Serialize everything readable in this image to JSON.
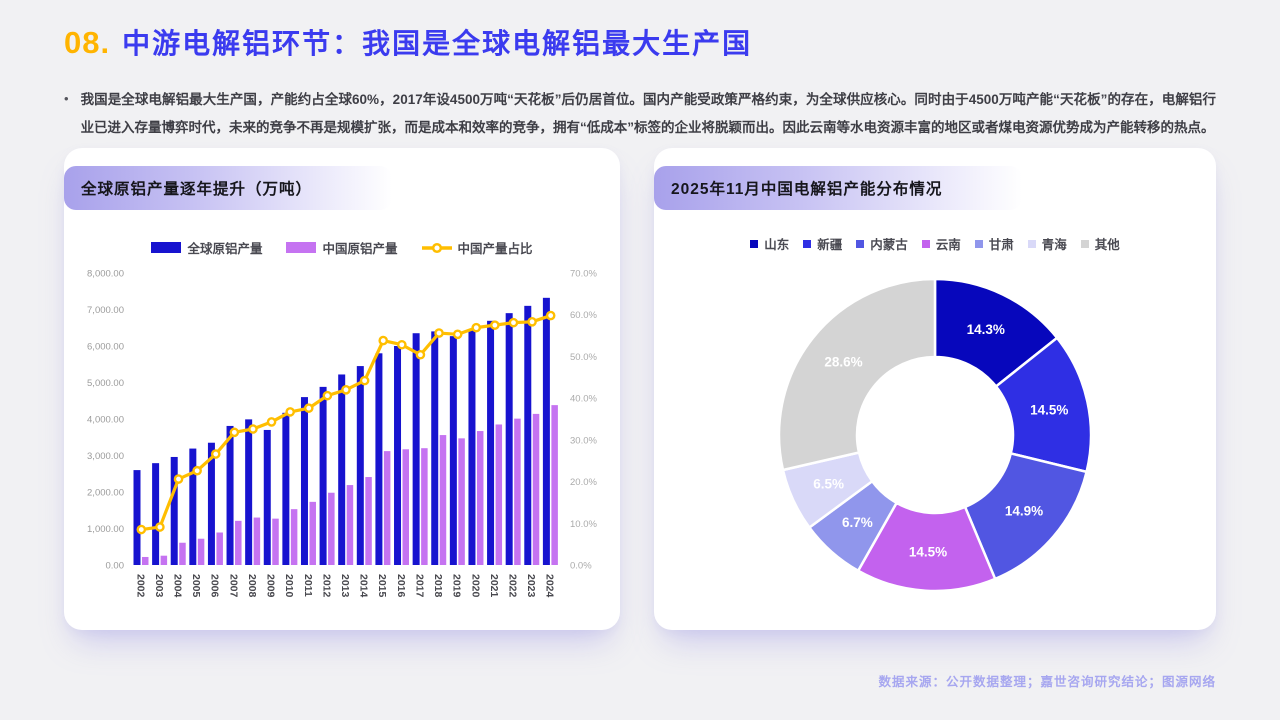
{
  "header": {
    "number": "08.",
    "title": "中游电解铝环节：我国是全球电解铝最大生产国"
  },
  "intro": {
    "bullet": "•",
    "text": "我国是全球电解铝最大生产国，产能约占全球60%，2017年设4500万吨“天花板”后仍居首位。国内产能受政策严格约束，为全球供应核心。同时由于4500万吨产能“天花板”的存在，电解铝行业已进入存量博弈时代，未来的竞争不再是规模扩张，而是成本和效率的竞争，拥有“低成本”标签的企业将脱颖而出。因此云南等水电资源丰富的地区或者煤电资源优势成为产能转移的热点。"
  },
  "footer": {
    "source": "数据来源：公开数据整理；嘉世咨询研究结论；图源网络"
  },
  "theme": {
    "page_bg": "#F1F1F3",
    "header_number_color": "#FFB400",
    "header_title_color": "#3B3BEF",
    "badge_gradient_start": "#A8A1EB",
    "footer_color": "#A7A7F0"
  },
  "chart_data": [
    {
      "type": "bar",
      "title": "全球原铝产量逐年提升（万吨）",
      "categories": [
        "2002",
        "2003",
        "2004",
        "2005",
        "2006",
        "2007",
        "2008",
        "2009",
        "2010",
        "2011",
        "2012",
        "2013",
        "2014",
        "2015",
        "2016",
        "2017",
        "2018",
        "2019",
        "2020",
        "2021",
        "2022",
        "2023",
        "2024"
      ],
      "series": [
        {
          "name": "全球原铝产量",
          "type": "bar",
          "color": "#1713CF",
          "values": [
            2600,
            2790,
            2960,
            3190,
            3350,
            3810,
            3990,
            3700,
            4170,
            4600,
            4880,
            5220,
            5450,
            5800,
            6000,
            6350,
            6400,
            6270,
            6450,
            6690,
            6900,
            7100,
            7320
          ]
        },
        {
          "name": "中国原铝产量",
          "type": "bar",
          "color": "#C573F1",
          "values": [
            220,
            255,
            610,
            720,
            890,
            1210,
            1300,
            1270,
            1530,
            1730,
            1980,
            2190,
            2410,
            3120,
            3170,
            3200,
            3560,
            3470,
            3670,
            3850,
            4010,
            4140,
            4380
          ]
        },
        {
          "name": "中国产量占比",
          "type": "line",
          "color": "#FFBE00",
          "axis": "right",
          "values": [
            8.5,
            9.1,
            20.6,
            22.6,
            26.6,
            31.8,
            32.6,
            34.3,
            36.7,
            37.6,
            40.6,
            42.0,
            44.2,
            53.8,
            52.8,
            50.4,
            55.6,
            55.3,
            56.9,
            57.5,
            58.1,
            58.3,
            59.8
          ]
        }
      ],
      "y_left": {
        "min": 0,
        "max": 8000,
        "step": 1000,
        "labels": [
          "0.00",
          "1,000.00",
          "2,000.00",
          "3,000.00",
          "4,000.00",
          "5,000.00",
          "6,000.00",
          "7,000.00",
          "8,000.00"
        ]
      },
      "y_right": {
        "min": 0,
        "max": 70,
        "step": 10,
        "labels": [
          "0.0%",
          "10.0%",
          "20.0%",
          "30.0%",
          "40.0%",
          "50.0%",
          "60.0%",
          "70.0%"
        ]
      },
      "grid": false,
      "legend_position": "top",
      "xlabel": "",
      "ylabel": ""
    },
    {
      "type": "pie",
      "subtype": "donut",
      "title": "2025年11月中国电解铝产能分布情况",
      "labels": [
        "山东",
        "新疆",
        "内蒙古",
        "云南",
        "甘肃",
        "青海",
        "其他"
      ],
      "values": [
        14.3,
        14.5,
        14.9,
        14.5,
        6.7,
        6.5,
        28.6
      ],
      "value_labels": [
        "14.3%",
        "14.5%",
        "14.9%",
        "14.5%",
        "6.7%",
        "6.5%",
        "28.6%"
      ],
      "colors": [
        "#0707BC",
        "#2F2FE4",
        "#5156E2",
        "#C362EE",
        "#9096EC",
        "#D9D9F8",
        "#D4D4D4"
      ],
      "inner_radius_ratio": 0.5,
      "start_angle_deg_from_top": 0,
      "direction": "clockwise",
      "legend_position": "top",
      "label_color": "#ffffff"
    }
  ]
}
